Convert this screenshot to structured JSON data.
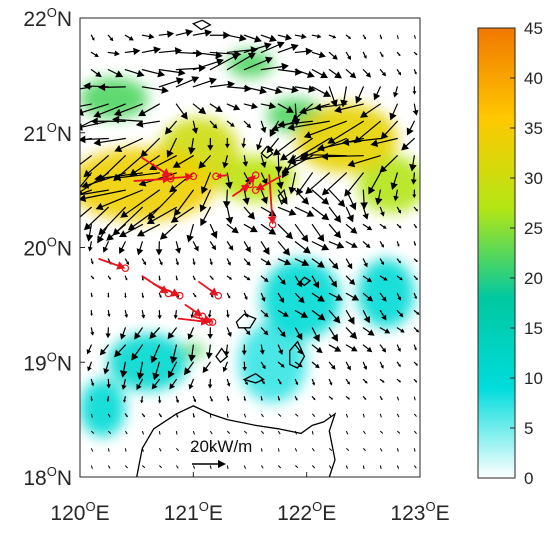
{
  "chart_data": {
    "type": "heatmap",
    "title": "",
    "xlabel": "",
    "ylabel": "",
    "xlim": [
      120,
      123
    ],
    "ylim": [
      18,
      22
    ],
    "x_ticks": [
      {
        "deg": "120",
        "sup": "O",
        "hem": "E"
      },
      {
        "deg": "121",
        "sup": "O",
        "hem": "E"
      },
      {
        "deg": "122",
        "sup": "O",
        "hem": "E"
      },
      {
        "deg": "123",
        "sup": "O",
        "hem": "E"
      }
    ],
    "y_ticks": [
      {
        "deg": "18",
        "sup": "O",
        "hem": "N"
      },
      {
        "deg": "19",
        "sup": "O",
        "hem": "N"
      },
      {
        "deg": "20",
        "sup": "O",
        "hem": "N"
      },
      {
        "deg": "21",
        "sup": "O",
        "hem": "N"
      },
      {
        "deg": "22",
        "sup": "O",
        "hem": "N"
      }
    ],
    "colorbar": {
      "range": [
        0,
        45
      ],
      "ticks": [
        "0",
        "5",
        "10",
        "15",
        "20",
        "25",
        "30",
        "35",
        "40",
        "45"
      ],
      "colors": [
        "#ffffff",
        "#00dcdc",
        "#00c8a0",
        "#b4e614",
        "#ffc800",
        "#f07800"
      ]
    },
    "field_blobs": [
      {
        "lon": 120.55,
        "lat": 20.55,
        "rx": 0.65,
        "ry": 0.32,
        "value": 34
      },
      {
        "lon": 121.05,
        "lat": 20.85,
        "rx": 0.35,
        "ry": 0.28,
        "value": 30
      },
      {
        "lon": 122.35,
        "lat": 20.95,
        "rx": 0.45,
        "ry": 0.3,
        "value": 33
      },
      {
        "lon": 122.75,
        "lat": 20.55,
        "rx": 0.3,
        "ry": 0.25,
        "value": 27
      },
      {
        "lon": 121.55,
        "lat": 20.6,
        "rx": 0.35,
        "ry": 0.2,
        "value": 28
      },
      {
        "lon": 121.5,
        "lat": 21.6,
        "rx": 0.2,
        "ry": 0.12,
        "value": 22
      },
      {
        "lon": 120.3,
        "lat": 21.3,
        "rx": 0.3,
        "ry": 0.18,
        "value": 22
      },
      {
        "lon": 121.9,
        "lat": 21.15,
        "rx": 0.25,
        "ry": 0.15,
        "value": 22
      },
      {
        "lon": 121.95,
        "lat": 19.55,
        "rx": 0.35,
        "ry": 0.35,
        "value": 10
      },
      {
        "lon": 120.6,
        "lat": 19.0,
        "rx": 0.35,
        "ry": 0.25,
        "value": 11
      },
      {
        "lon": 121.7,
        "lat": 19.0,
        "rx": 0.3,
        "ry": 0.35,
        "value": 7
      },
      {
        "lon": 121.0,
        "lat": 19.1,
        "rx": 0.1,
        "ry": 0.06,
        "value": 22
      },
      {
        "lon": 120.2,
        "lat": 18.6,
        "rx": 0.2,
        "ry": 0.25,
        "value": 10
      },
      {
        "lon": 122.7,
        "lat": 19.6,
        "rx": 0.25,
        "ry": 0.3,
        "value": 10
      }
    ],
    "vector_scale": {
      "label": "20kW/m",
      "magnitude": 20
    },
    "vector_field": {
      "lon_min": 120.1,
      "lon_max": 122.95,
      "lon_step": 0.15,
      "lat_min": 18.1,
      "lat_max": 21.95,
      "lat_step": 0.15,
      "blobs": [
        {
          "lon": 120.55,
          "lat": 20.55,
          "rx": 0.7,
          "ry": 0.45,
          "mag": 28,
          "dir": 185
        },
        {
          "lon": 122.35,
          "lat": 20.95,
          "rx": 0.6,
          "ry": 0.45,
          "mag": 28,
          "dir": 175
        },
        {
          "lon": 121.2,
          "lat": 21.6,
          "rx": 0.9,
          "ry": 0.35,
          "mag": 18,
          "dir": 30
        },
        {
          "lon": 120.3,
          "lat": 21.2,
          "rx": 0.5,
          "ry": 0.3,
          "mag": 16,
          "dir": 170
        },
        {
          "lon": 121.9,
          "lat": 20.2,
          "rx": 0.6,
          "ry": 0.4,
          "mag": 10,
          "dir": 330
        },
        {
          "lon": 120.7,
          "lat": 19.1,
          "rx": 0.7,
          "ry": 0.35,
          "mag": 10,
          "dir": 225
        },
        {
          "lon": 122.2,
          "lat": 19.4,
          "rx": 0.7,
          "ry": 0.5,
          "mag": 8,
          "dir": 320
        }
      ],
      "base_mag": 2,
      "base_dir": 300
    },
    "observed_vectors": [
      {
        "lon": 120.55,
        "lat": 20.78,
        "tip_lon": 120.8,
        "tip_lat": 20.62
      },
      {
        "lon": 120.48,
        "lat": 20.58,
        "tip_lon": 120.8,
        "tip_lat": 20.6
      },
      {
        "lon": 120.75,
        "lat": 20.6,
        "tip_lon": 121.0,
        "tip_lat": 20.62
      },
      {
        "lon": 121.3,
        "lat": 20.63,
        "tip_lon": 121.2,
        "tip_lat": 20.62
      },
      {
        "lon": 121.35,
        "lat": 20.45,
        "tip_lon": 121.5,
        "tip_lat": 20.55
      },
      {
        "lon": 121.42,
        "lat": 20.5,
        "tip_lon": 121.55,
        "tip_lat": 20.63
      },
      {
        "lon": 121.67,
        "lat": 20.63,
        "tip_lon": 121.7,
        "tip_lat": 20.2
      },
      {
        "lon": 121.77,
        "lat": 20.62,
        "tip_lon": 121.55,
        "tip_lat": 20.5
      },
      {
        "lon": 120.17,
        "lat": 19.9,
        "tip_lon": 120.4,
        "tip_lat": 19.82
      },
      {
        "lon": 120.55,
        "lat": 19.75,
        "tip_lon": 120.78,
        "tip_lat": 19.6
      },
      {
        "lon": 120.65,
        "lat": 19.68,
        "tip_lon": 120.88,
        "tip_lat": 19.58
      },
      {
        "lon": 121.05,
        "lat": 19.7,
        "tip_lon": 121.22,
        "tip_lat": 19.58
      },
      {
        "lon": 120.93,
        "lat": 19.5,
        "tip_lon": 121.08,
        "tip_lat": 19.4
      },
      {
        "lon": 120.87,
        "lat": 19.38,
        "tip_lon": 121.14,
        "tip_lat": 19.35
      },
      {
        "lon": 121.0,
        "lat": 19.4,
        "tip_lon": 121.17,
        "tip_lat": 19.35
      }
    ],
    "coastlines": [
      {
        "name": "luzon",
        "closed": false,
        "points": [
          [
            120.5,
            18.0
          ],
          [
            120.55,
            18.25
          ],
          [
            120.65,
            18.42
          ],
          [
            120.85,
            18.55
          ],
          [
            121.0,
            18.62
          ],
          [
            121.15,
            18.55
          ],
          [
            121.3,
            18.5
          ],
          [
            121.55,
            18.45
          ],
          [
            121.75,
            18.42
          ],
          [
            121.95,
            18.38
          ],
          [
            122.05,
            18.45
          ],
          [
            122.15,
            18.48
          ],
          [
            122.25,
            18.55
          ],
          [
            122.2,
            18.4
          ],
          [
            122.25,
            18.15
          ],
          [
            122.2,
            18.0
          ]
        ]
      },
      {
        "name": "batan-island",
        "closed": true,
        "points": [
          [
            121.75,
            20.45
          ],
          [
            121.8,
            20.5
          ],
          [
            121.82,
            20.42
          ],
          [
            121.78,
            20.38
          ]
        ]
      },
      {
        "name": "islet-a",
        "closed": true,
        "points": [
          [
            121.6,
            20.82
          ],
          [
            121.65,
            20.88
          ],
          [
            121.7,
            20.82
          ],
          [
            121.65,
            20.78
          ]
        ]
      },
      {
        "name": "islet-b",
        "closed": true,
        "points": [
          [
            121.85,
            20.75
          ],
          [
            121.88,
            20.8
          ],
          [
            121.9,
            20.72
          ]
        ]
      },
      {
        "name": "islet-c",
        "closed": true,
        "points": [
          [
            121.94,
            19.7
          ],
          [
            121.98,
            19.74
          ],
          [
            122.03,
            19.71
          ],
          [
            121.98,
            19.67
          ]
        ]
      },
      {
        "name": "babuyan-1",
        "closed": true,
        "points": [
          [
            121.38,
            19.35
          ],
          [
            121.45,
            19.42
          ],
          [
            121.55,
            19.38
          ],
          [
            121.5,
            19.3
          ],
          [
            121.4,
            19.3
          ]
        ]
      },
      {
        "name": "babuyan-2",
        "closed": true,
        "points": [
          [
            121.85,
            19.1
          ],
          [
            121.92,
            19.18
          ],
          [
            121.98,
            19.05
          ],
          [
            121.92,
            18.95
          ],
          [
            121.85,
            18.98
          ]
        ]
      },
      {
        "name": "babuyan-3",
        "closed": true,
        "points": [
          [
            121.45,
            18.85
          ],
          [
            121.55,
            18.9
          ],
          [
            121.62,
            18.85
          ],
          [
            121.55,
            18.82
          ]
        ]
      },
      {
        "name": "babuyan-4",
        "closed": true,
        "points": [
          [
            121.2,
            19.05
          ],
          [
            121.25,
            19.12
          ],
          [
            121.3,
            19.05
          ],
          [
            121.24,
            19.0
          ]
        ]
      },
      {
        "name": "north-islet",
        "closed": true,
        "points": [
          [
            121.0,
            21.95
          ],
          [
            121.08,
            21.98
          ],
          [
            121.15,
            21.94
          ],
          [
            121.07,
            21.9
          ]
        ]
      }
    ]
  }
}
